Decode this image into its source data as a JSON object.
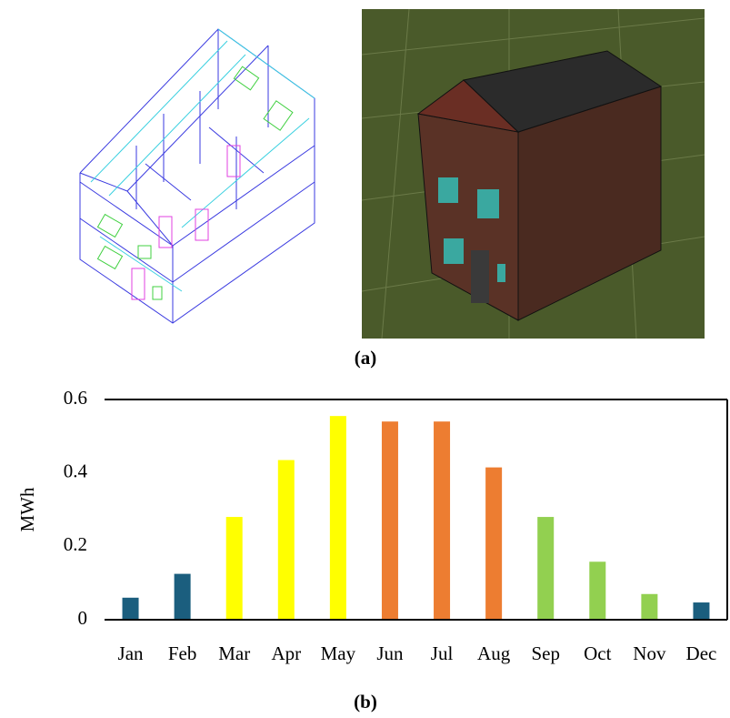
{
  "panel_a_label": "(a)",
  "panel_b_label": "(b)",
  "chart_data": {
    "type": "bar",
    "y_label": "MWh",
    "categories": [
      "Jan",
      "Feb",
      "Mar",
      "Apr",
      "May",
      "Jun",
      "Jul",
      "Aug",
      "Sep",
      "Oct",
      "Nov",
      "Dec"
    ],
    "values": [
      0.06,
      0.125,
      0.28,
      0.435,
      0.555,
      0.54,
      0.54,
      0.415,
      0.28,
      0.158,
      0.07,
      0.047
    ],
    "colors": [
      "#1b5e7e",
      "#1b5e7e",
      "#ffff00",
      "#ffff00",
      "#ffff00",
      "#ed7d31",
      "#ed7d31",
      "#ed7d31",
      "#92d050",
      "#92d050",
      "#92d050",
      "#1b5e7e"
    ],
    "ylim": [
      0,
      0.6
    ],
    "yticks": [
      0,
      0.2,
      0.4,
      0.6
    ]
  }
}
